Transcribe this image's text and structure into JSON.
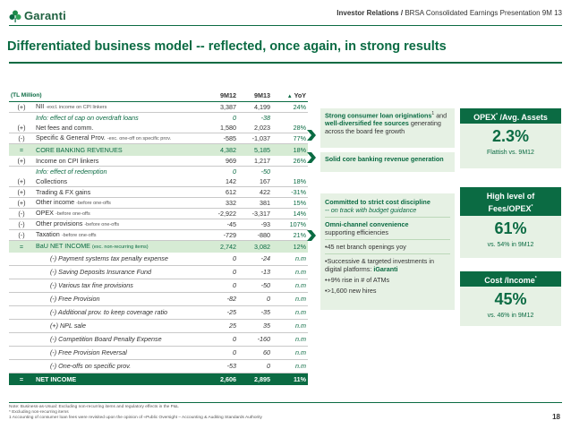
{
  "header": {
    "brand": "Garanti",
    "section": "Investor Relations",
    "separator": "/",
    "presentation": "BRSA Consolidated Earnings Presentation 9M 13"
  },
  "title": "Differentiated business model -- reflected, once again, in strong results",
  "table": {
    "unit": "(TL Million)",
    "col1": "9M12",
    "col2": "9M13",
    "col3": "YoY",
    "rows": [
      {
        "op": "(+)",
        "label": "NII",
        "note": "-excl. income on CPI linkers",
        "v1": "3,387",
        "v2": "4,199",
        "yoy": "24%"
      },
      {
        "op": "",
        "label": "Info: effect of cap on overdraft loans",
        "note": "",
        "v1": "0",
        "v2": "-38",
        "yoy": ""
      },
      {
        "op": "(+)",
        "label": "Net fees and comm.",
        "note": "",
        "v1": "1,580",
        "v2": "2,023",
        "yoy": "28%"
      },
      {
        "op": "(-)",
        "label": "Specific & General Prov.",
        "note": "-exc. one-off on specific prov.",
        "v1": "-585",
        "v2": "-1,037",
        "yoy": "77%"
      },
      {
        "op": "=",
        "label": "CORE BANKING REVENUES",
        "note": "",
        "v1": "4,382",
        "v2": "5,185",
        "yoy": "18%"
      },
      {
        "op": "(+)",
        "label": "Income on CPI linkers",
        "note": "",
        "v1": "969",
        "v2": "1,217",
        "yoy": "26%"
      },
      {
        "op": "",
        "label": "Info: effect of redemption",
        "note": "",
        "v1": "0",
        "v2": "-50",
        "yoy": ""
      },
      {
        "op": "(+)",
        "label": "Collections",
        "note": "",
        "v1": "142",
        "v2": "167",
        "yoy": "18%"
      },
      {
        "op": "(+)",
        "label": "Trading & FX gains",
        "note": "",
        "v1": "612",
        "v2": "422",
        "yoy": "-31%"
      },
      {
        "op": "(+)",
        "label": "Other income",
        "note": "-before one-offs",
        "v1": "332",
        "v2": "381",
        "yoy": "15%"
      },
      {
        "op": "(-)",
        "label": "OPEX",
        "note": "-before one-offs",
        "v1": "-2,922",
        "v2": "-3,317",
        "yoy": "14%"
      },
      {
        "op": "(-)",
        "label": "Other provisions",
        "note": "-before one-offs",
        "v1": "-45",
        "v2": "-93",
        "yoy": "107%"
      },
      {
        "op": "(-)",
        "label": "Taxation",
        "note": "-before one-offs",
        "v1": "-729",
        "v2": "-880",
        "yoy": "21%"
      },
      {
        "op": "=",
        "label": "BaU NET INCOME",
        "note": "(exc. non-recurring items)",
        "v1": "2,742",
        "v2": "3,082",
        "yoy": "12%"
      },
      {
        "op": "",
        "label": "(-) Payment systems tax penalty expense",
        "note": "",
        "v1": "0",
        "v2": "-24",
        "yoy": "n.m"
      },
      {
        "op": "",
        "label": "(-) Saving Deposits Insurance Fund",
        "note": "",
        "v1": "0",
        "v2": "-13",
        "yoy": "n.m"
      },
      {
        "op": "",
        "label": "(-) Various tax fine provisions",
        "note": "",
        "v1": "0",
        "v2": "-50",
        "yoy": "n.m"
      },
      {
        "op": "",
        "label": "(-) Free Provision",
        "note": "",
        "v1": "-82",
        "v2": "0",
        "yoy": "n.m"
      },
      {
        "op": "",
        "label": "(-) Additional prov. to keep coverage ratio",
        "note": "",
        "v1": "-25",
        "v2": "-35",
        "yoy": "n.m"
      },
      {
        "op": "",
        "label": "(+) NPL sale",
        "note": "",
        "v1": "25",
        "v2": "35",
        "yoy": "n.m"
      },
      {
        "op": "",
        "label": "(-) Competition Board Penalty Expense",
        "note": "",
        "v1": "0",
        "v2": "-160",
        "yoy": "n.m"
      },
      {
        "op": "",
        "label": "(-) Free Provision Reversal",
        "note": "",
        "v1": "0",
        "v2": "60",
        "yoy": "n.m"
      },
      {
        "op": "",
        "label": "(-) One-offs on specific prov.",
        "note": "",
        "v1": "-53",
        "v2": "0",
        "yoy": "n.m"
      },
      {
        "op": "=",
        "label": "NET INCOME",
        "note": "",
        "v1": "2,606",
        "v2": "2,895",
        "yoy": "11%"
      }
    ]
  },
  "callouts": {
    "fees_bold": "Strong consumer loan originations",
    "fees_sup": "1",
    "fees_text1": "and",
    "fees_bold2": "well-diversified fee sources",
    "fees_text2": "generating across the board fee growth",
    "core": "Solid core banking revenue generation",
    "opex_bold": "Committed to strict cost discipline",
    "opex_sub": "-- on track with budget guidance",
    "omni_bold": "Omni-channel convenience",
    "omni_text": "supporting efficiencies",
    "bullet1": "•45 net branch openings yoy",
    "bullet2_a": "•Successive & targeted investments in digital platforms:",
    "bullet2_b": "iGaranti",
    "bullet3": "•+9% rise in # of ATMs",
    "bullet4": "•>1,600 new hires"
  },
  "kpis": [
    {
      "title_a": "OPEX",
      "title_sup": "*",
      "title_b": " /Avg. Assets",
      "value": "2.3%",
      "caption": "Flattish vs. 9M12"
    },
    {
      "title_a": "High level of Fees/OPEX",
      "title_sup": "*",
      "title_b": "",
      "value": "61%",
      "caption": "vs. 54% in 9M12"
    },
    {
      "title_a": "Cost /Income",
      "title_sup": "*",
      "title_b": "",
      "value": "45%",
      "caption": "vs. 46% in 9M12"
    }
  ],
  "footer": {
    "note1": "Note: Business-as-Usual: Excluding non-recurring items and regulatory effects in the P&L",
    "note2": "* Excluding non-recurring items",
    "note3": "1 Accounting of consumer loan fees were revisited upon the opinion of «Public Oversight – Accounting & Auditing Standards Authority",
    "page": "18"
  },
  "colors": {
    "brand_green": "#0b6b43",
    "light_green": "#e6f1e4",
    "band_green": "#d6ebd4"
  },
  "icons": {
    "logo": "clover-logo-icon",
    "yoy": "delta-triangle-icon",
    "arrow": "chevron-right-icon"
  }
}
